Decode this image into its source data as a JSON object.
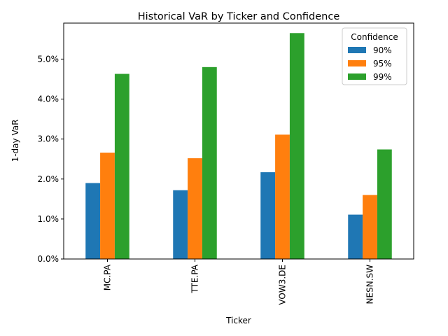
{
  "chart_data": {
    "type": "bar",
    "title": "Historical VaR by Ticker and Confidence",
    "xlabel": "Ticker",
    "ylabel": "1-day VaR",
    "categories": [
      "MC.PA",
      "TTE.PA",
      "VOW3.DE",
      "NESN.SW"
    ],
    "series": [
      {
        "name": "90%",
        "color": "#1f77b4",
        "values": [
          1.9,
          1.72,
          2.17,
          1.11
        ]
      },
      {
        "name": "95%",
        "color": "#ff7f0e",
        "values": [
          2.66,
          2.52,
          3.11,
          1.6
        ]
      },
      {
        "name": "99%",
        "color": "#2ca02c",
        "values": [
          4.63,
          4.8,
          5.65,
          2.74
        ]
      }
    ],
    "ylim": [
      0,
      5.9
    ],
    "yticks": [
      0,
      1,
      2,
      3,
      4,
      5
    ],
    "ytick_labels": [
      "0.0%",
      "1.0%",
      "2.0%",
      "3.0%",
      "4.0%",
      "5.0%"
    ],
    "legend": {
      "title": "Confidence",
      "position": "top-right"
    },
    "grid": false
  }
}
